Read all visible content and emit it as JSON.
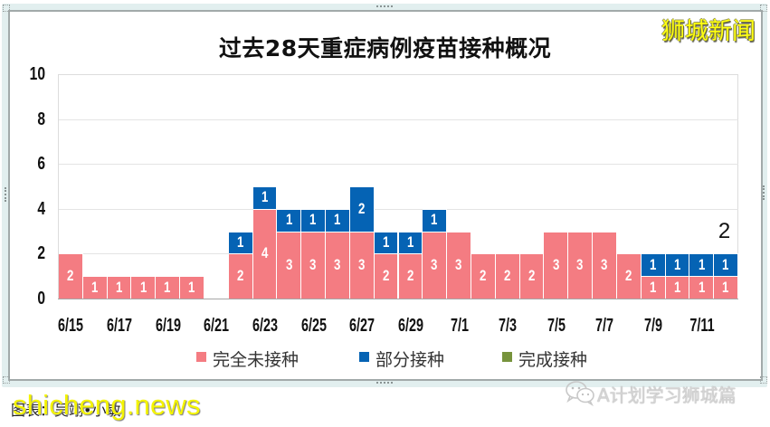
{
  "title": "过去28天重症病例疫苗接种概况",
  "branding": {
    "top_right": "狮城新闻",
    "bottom_left": "shicheng.news",
    "bottom_right": "A计划学习狮城篇"
  },
  "source": "图表：吴翊•小敏",
  "legend": {
    "items": [
      {
        "label": "完全未接种",
        "color": "#f47c82"
      },
      {
        "label": "部分接种",
        "color": "#0563b4"
      },
      {
        "label": "完成接种",
        "color": "#77933c"
      }
    ]
  },
  "icons": {
    "wechat": "wechat-icon"
  },
  "chart_data": {
    "type": "bar",
    "stacked": true,
    "title": "过去28天重症病例疫苗接种概况",
    "xlabel": "",
    "ylabel": "",
    "ylim": [
      0,
      10
    ],
    "yticks": [
      0,
      2,
      4,
      6,
      8,
      10
    ],
    "grid": true,
    "legend_position": "bottom",
    "categories": [
      "6/15",
      "6/16",
      "6/17",
      "6/18",
      "6/19",
      "6/20",
      "6/21",
      "6/22",
      "6/23",
      "6/24",
      "6/25",
      "6/26",
      "6/27",
      "6/28",
      "6/29",
      "6/30",
      "7/1",
      "7/2",
      "7/3",
      "7/4",
      "7/5",
      "7/6",
      "7/7",
      "7/8",
      "7/9",
      "7/10",
      "7/11",
      "7/12"
    ],
    "xtick_labels": [
      "6/15",
      "6/17",
      "6/19",
      "6/21",
      "6/23",
      "6/25",
      "6/27",
      "6/29",
      "7/1",
      "7/3",
      "7/5",
      "7/7",
      "7/9",
      "7/11"
    ],
    "series": [
      {
        "name": "完全未接种",
        "color": "#f47c82",
        "values": [
          2,
          1,
          1,
          1,
          1,
          1,
          0,
          2,
          4,
          3,
          3,
          3,
          3,
          2,
          2,
          3,
          3,
          2,
          2,
          2,
          3,
          3,
          3,
          2,
          1,
          1,
          1,
          1
        ]
      },
      {
        "name": "部分接种",
        "color": "#0563b4",
        "values": [
          0,
          0,
          0,
          0,
          0,
          0,
          0,
          1,
          1,
          1,
          1,
          1,
          2,
          1,
          1,
          1,
          0,
          0,
          0,
          0,
          0,
          0,
          0,
          0,
          1,
          1,
          1,
          1
        ]
      },
      {
        "name": "完成接种",
        "color": "#77933c",
        "values": [
          0,
          0,
          0,
          0,
          0,
          0,
          0,
          0,
          0,
          0,
          0,
          0,
          0,
          0,
          0,
          0,
          0,
          0,
          0,
          0,
          0,
          0,
          0,
          0,
          0,
          0,
          0,
          0
        ]
      }
    ],
    "annotations": [
      {
        "category": "7/12",
        "y": 2,
        "text": "2"
      }
    ]
  }
}
